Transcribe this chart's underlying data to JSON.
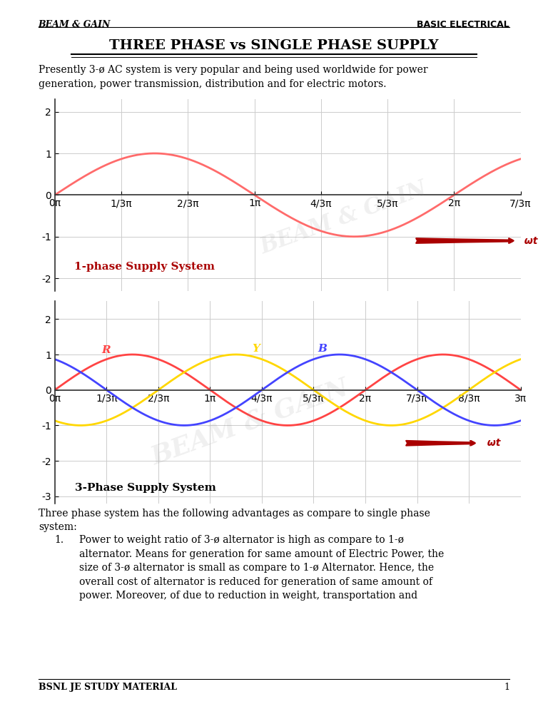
{
  "title": "THREE PHASE vs SINGLE PHASE SUPPLY",
  "header_left": "BEAM & GAIN",
  "header_right": "BASIC ELECTRICAL",
  "intro_text": "Presently 3-ø AC system is very popular and being used worldwide for power\ngeneration, power transmission, distribution and for electric motors.",
  "plot1_label": "1-phase Supply System",
  "plot2_label": "3-Phase Supply System",
  "plot1_color": "#FF6B6B",
  "phase_R_color": "#FF4444",
  "phase_Y_color": "#FFD700",
  "phase_B_color": "#4444FF",
  "wt_color": "#AA0000",
  "wt_label": "ωt",
  "body_text": "Three phase system has the following advantages as compare to single phase\nsystem:",
  "bullet1": "Power to weight ratio of 3-ø alternator is high as compare to 1-ø\nalternator. Means for generation for same amount of Electric Power, the\nsize of 3-ø alternator is small as compare to 1-ø Alternator. Hence, the\noverall cost of alternator is reduced for generation of same amount of\npower. Moreover, of due to reduction in weight, transportation and",
  "footer_text": "BSNL JE STUDY MATERIAL",
  "page_number": "1",
  "background_color": "#FFFFFF",
  "grid_color": "#CCCCCC",
  "axis_color": "#333333",
  "tick_label_color": "#333333",
  "watermark_text": "BEAM & GAIN",
  "watermark_alpha": 0.12
}
